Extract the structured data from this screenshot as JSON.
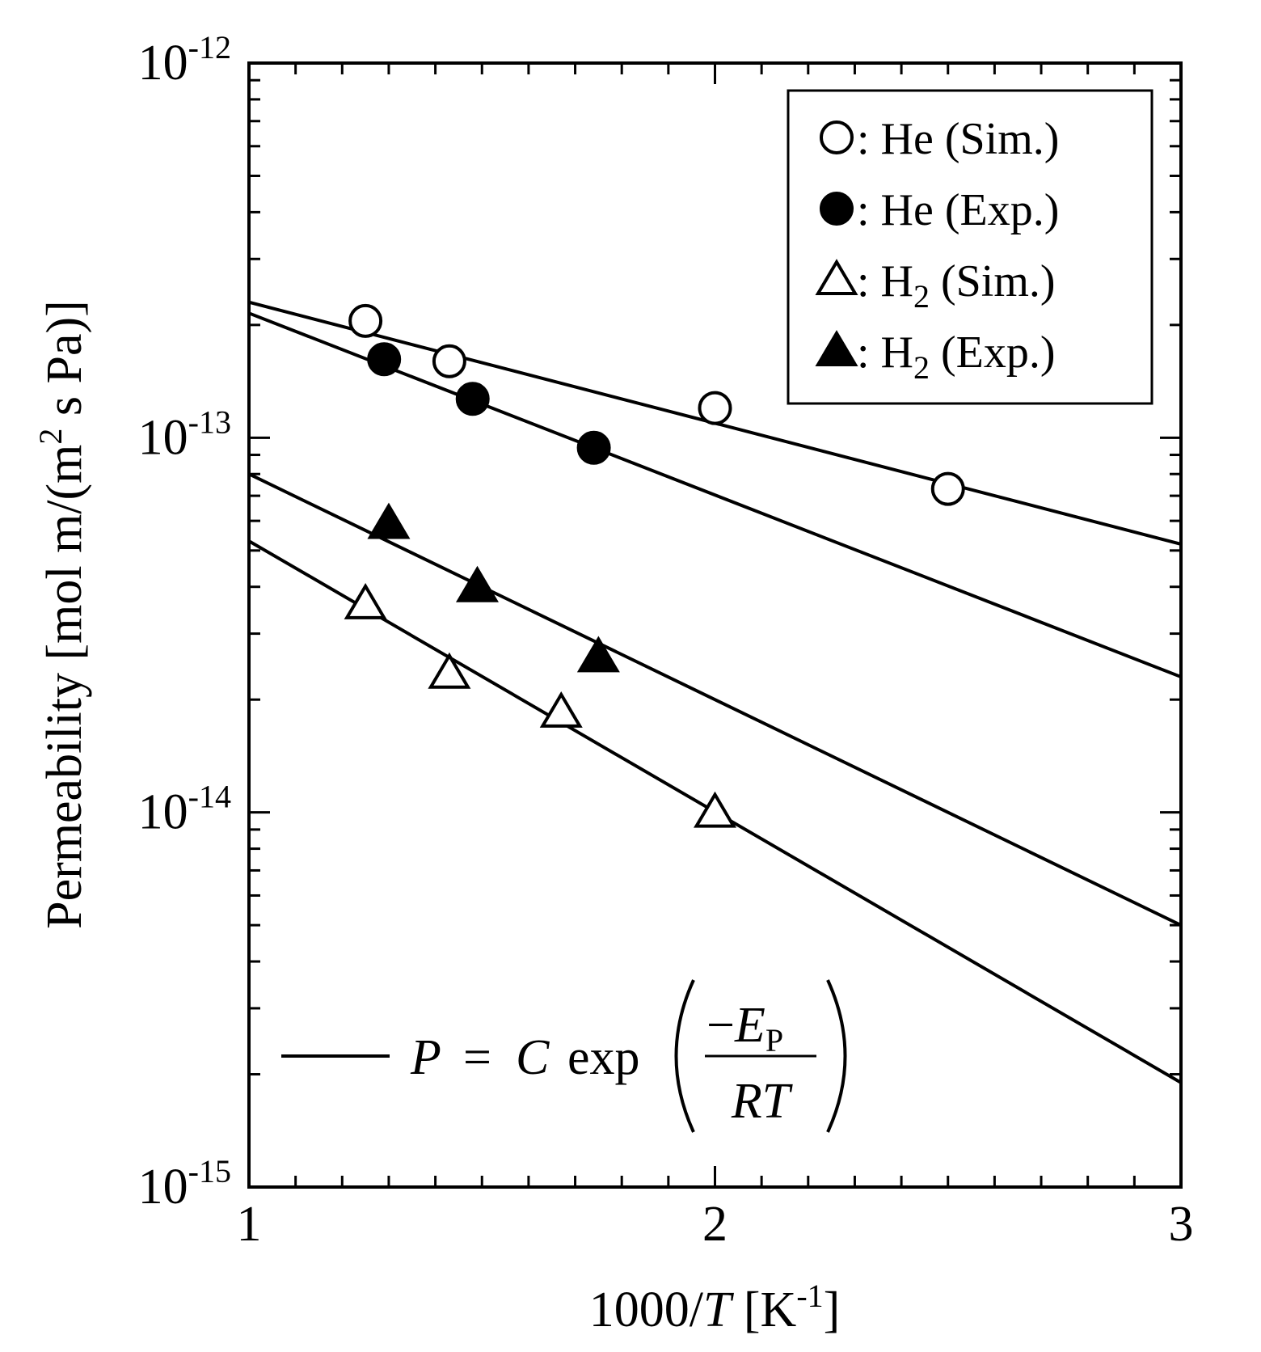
{
  "chart_data": {
    "type": "scatter",
    "xlabel": {
      "prefix": "1000/",
      "var": "T",
      "unit": " [K",
      "unit_sup": "-1",
      "unit_end": "]"
    },
    "ylabel": {
      "text": "Permeability [mol m/(m",
      "sup": "2",
      "tail": " s Pa)]"
    },
    "xscale": "linear",
    "yscale": "log",
    "xlim": [
      1,
      3
    ],
    "ylim": [
      1e-15,
      1e-12
    ],
    "x_ticks": [
      {
        "value": 1,
        "label": "1"
      },
      {
        "value": 2,
        "label": "2"
      },
      {
        "value": 3,
        "label": "3"
      }
    ],
    "y_ticks": [
      {
        "value": 1e-15,
        "base": "10",
        "exp": "-15"
      },
      {
        "value": 1e-14,
        "base": "10",
        "exp": "-14"
      },
      {
        "value": 1e-13,
        "base": "10",
        "exp": "-13"
      },
      {
        "value": 1e-12,
        "base": "10",
        "exp": "-12"
      }
    ],
    "series": [
      {
        "name": "He (Sim.)",
        "label": "He",
        "sub": "",
        "suffix": " (Sim.)",
        "marker": "circle",
        "filled": false,
        "points": [
          [
            1.25,
            2.05e-13
          ],
          [
            1.43,
            1.6e-13
          ],
          [
            2.0,
            1.2e-13
          ],
          [
            2.5,
            7.3e-14
          ]
        ],
        "fit": [
          [
            1.0,
            2.3e-13
          ],
          [
            3.0,
            5.2e-14
          ]
        ]
      },
      {
        "name": "He (Exp.)",
        "label": "He",
        "sub": "",
        "suffix": " (Exp.)",
        "marker": "circle",
        "filled": true,
        "points": [
          [
            1.29,
            1.62e-13
          ],
          [
            1.48,
            1.27e-13
          ],
          [
            1.74,
            9.4e-14
          ]
        ],
        "fit": [
          [
            1.0,
            2.15e-13
          ],
          [
            3.0,
            2.3e-14
          ]
        ]
      },
      {
        "name": "H2 (Sim.)",
        "label": "H",
        "sub": "2",
        "suffix": " (Sim.)",
        "marker": "triangle",
        "filled": false,
        "points": [
          [
            1.25,
            3.6e-14
          ],
          [
            1.43,
            2.35e-14
          ],
          [
            1.67,
            1.85e-14
          ],
          [
            2.0,
            1e-14
          ]
        ],
        "fit": [
          [
            1.0,
            5.3e-14
          ],
          [
            3.0,
            1.9e-15
          ]
        ]
      },
      {
        "name": "H2 (Exp.)",
        "label": "H",
        "sub": "2",
        "suffix": " (Exp.)",
        "marker": "triangle",
        "filled": true,
        "points": [
          [
            1.3,
            5.9e-14
          ],
          [
            1.49,
            4e-14
          ],
          [
            1.75,
            2.6e-14
          ]
        ],
        "fit": [
          [
            1.0,
            8e-14
          ],
          [
            3.0,
            5e-15
          ]
        ]
      }
    ],
    "legend": {
      "placement": "top-right",
      "separator": ": "
    },
    "fit_annotation": {
      "lhs": "P",
      "equals": "=",
      "coef": "C",
      "func": "exp",
      "num_minus": "−",
      "num_var": "E",
      "num_sub": "P",
      "den": "RT"
    }
  }
}
